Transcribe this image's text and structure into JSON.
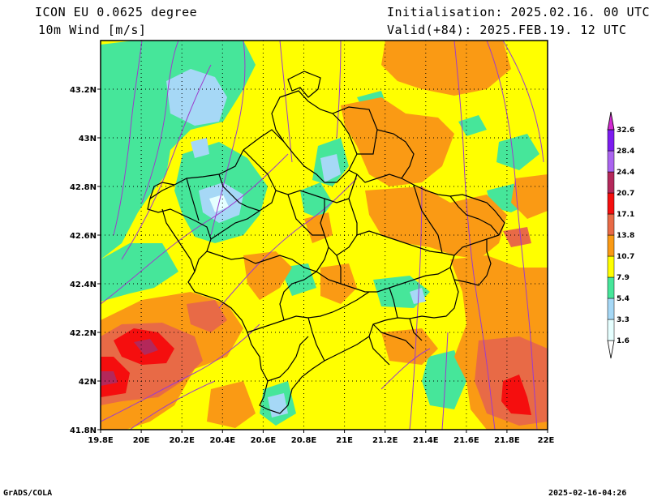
{
  "header": {
    "model": "ICON EU 0.0625 degree",
    "field": "10m Wind [m/s]",
    "init": "Initialisation: 2025.02.16. 00 UTC",
    "valid": "Valid(+84): 2025.FEB.19. 12 UTC"
  },
  "footer": {
    "left": "GrADS/COLA",
    "right": "2025-02-16-04:26"
  },
  "map": {
    "lon_range": [
      19.8,
      22.0
    ],
    "lat_range": [
      41.8,
      43.4
    ],
    "lon_ticks": [
      "19.8E",
      "20E",
      "20.2E",
      "20.4E",
      "20.6E",
      "20.8E",
      "21E",
      "21.2E",
      "21.4E",
      "21.6E",
      "21.8E",
      "22E"
    ],
    "lat_ticks": [
      "41.8N",
      "42N",
      "42.2N",
      "42.4N",
      "42.6N",
      "42.8N",
      "43N",
      "43.2N"
    ],
    "grid": "dotted"
  },
  "colorbar": {
    "levels": [
      "1.6",
      "3.3",
      "5.4",
      "7.9",
      "10.7",
      "13.8",
      "17.1",
      "20.7",
      "24.4",
      "28.4",
      "32.6"
    ],
    "colors": [
      "#e6ffff",
      "#a6d8f6",
      "#46e69a",
      "#ffff00",
      "#fa9a14",
      "#e86a46",
      "#f50e0e",
      "#b4285a",
      "#aa64f0",
      "#7c1cf0",
      "#d22ad2"
    ],
    "background_color": "#ffff00"
  }
}
